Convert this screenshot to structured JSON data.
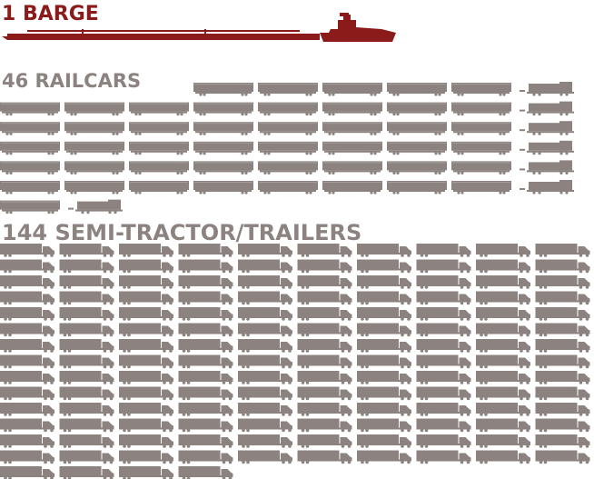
{
  "sections": [
    {
      "label": "1 BARGE",
      "count": 1
    },
    {
      "label": "46 RAILCARS",
      "count": 46
    },
    {
      "label": "144 SEMI-TRACTOR/TRAILERS",
      "count": 144
    }
  ]
}
